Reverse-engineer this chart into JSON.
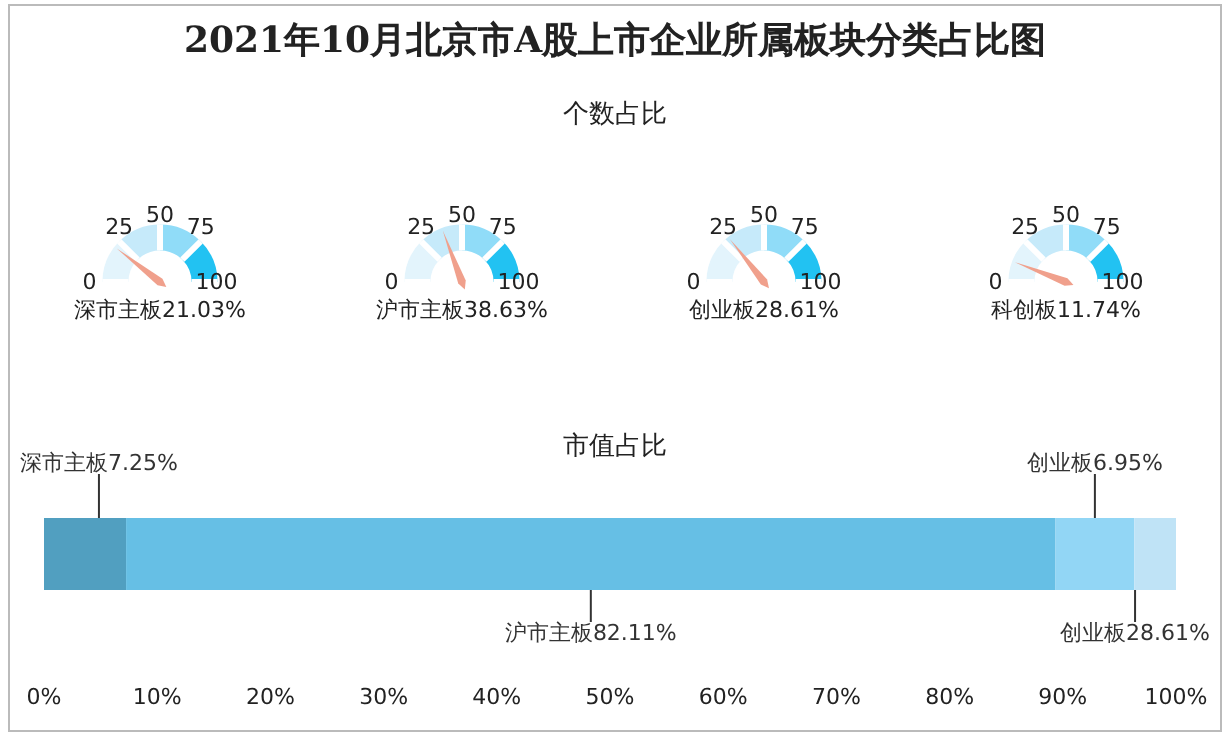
{
  "chart_data": [
    {
      "type": "other",
      "title": "2021年10月北京市A股上市企业所属板块分类占比图",
      "subtitle": "个数占比",
      "values": [
        21.03
      ],
      "value_labels": [
        "深市主板21.03%"
      ],
      "annotations": [
        "0",
        "25",
        "50",
        "75",
        "100"
      ],
      "colors": [
        "#f0a08c"
      ]
    },
    {
      "type": "other",
      "values": [
        38.63
      ],
      "value_labels": [
        "沪市主板38.63%"
      ],
      "annotations": [
        "0",
        "25",
        "50",
        "75",
        "100"
      ],
      "colors": [
        "#f0a08c"
      ]
    },
    {
      "type": "other",
      "values": [
        28.61
      ],
      "value_labels": [
        "创业板28.61%"
      ],
      "annotations": [
        "0",
        "25",
        "50",
        "75",
        "100"
      ],
      "colors": [
        "#f0a08c"
      ]
    },
    {
      "type": "other",
      "values": [
        11.74
      ],
      "value_labels": [
        "科创板11.74%"
      ],
      "annotations": [
        "0",
        "25",
        "50",
        "75",
        "100"
      ],
      "colors": [
        "#f0a08c"
      ]
    },
    {
      "type": "bar",
      "title": "市值占比",
      "orientation": "horizontal",
      "stacked": true,
      "categories": [
        null
      ],
      "grid": false,
      "xlim": [
        0,
        100
      ],
      "xticks": [
        {
          "value": 0,
          "label": "0%"
        },
        {
          "value": 10,
          "label": "10%"
        },
        {
          "value": 20,
          "label": "20%"
        },
        {
          "value": 30,
          "label": "30%"
        },
        {
          "value": 40,
          "label": "40%"
        },
        {
          "value": 50,
          "label": "50%"
        },
        {
          "value": 60,
          "label": "60%"
        },
        {
          "value": 70,
          "label": "70%"
        },
        {
          "value": 80,
          "label": "80%"
        },
        {
          "value": 90,
          "label": "90%"
        },
        {
          "value": 100,
          "label": "100%"
        }
      ],
      "series": [
        {
          "color": "#519fc0",
          "values": [
            7.25
          ],
          "value_labels": [
            "深市主板7.25%"
          ]
        },
        {
          "color": "#66bfe5",
          "values": [
            82.11
          ],
          "value_labels": [
            "沪市主板82.11%"
          ]
        },
        {
          "color": "#92d6f5",
          "values": [
            6.95
          ],
          "value_labels": [
            "创业板6.95%"
          ]
        },
        {
          "color": "#bfe3f6",
          "values": [
            3.7
          ],
          "value_labels": [
            "创业板28.61%"
          ]
        }
      ]
    }
  ]
}
